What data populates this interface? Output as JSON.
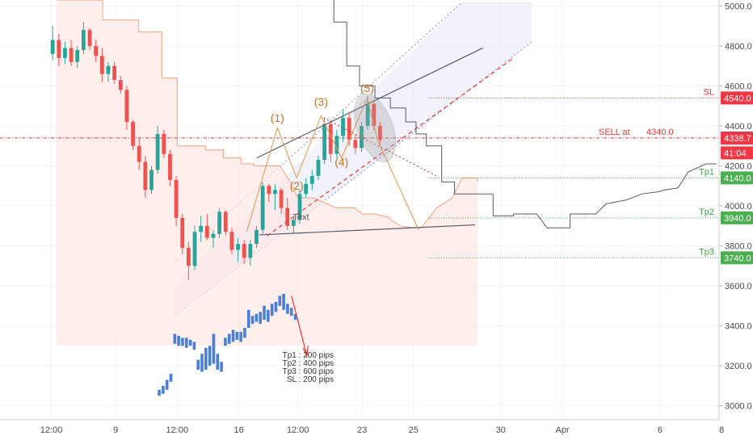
{
  "chart_data": {
    "type": "candlestick",
    "y_axis": {
      "ticks": [
        5000,
        4800,
        4600,
        4400,
        4200,
        4000,
        3800,
        3600,
        3400,
        3200,
        3000
      ],
      "tick_labels": [
        "5000.0",
        "4800.0",
        "4600.0",
        "4400.0",
        "4200.0",
        "4000.0",
        "3800.0",
        "3600.0",
        "3400.0",
        "3200.0",
        "3000.0"
      ],
      "range": [
        2930,
        5030
      ],
      "position": "right"
    },
    "x_axis": {
      "tick_labels": [
        "12:00",
        "9",
        "12:00",
        "16",
        "12:00",
        "23",
        "25",
        "30",
        "Apr",
        "6",
        "8"
      ],
      "range": [
        -1,
        27
      ]
    },
    "price_tags": [
      {
        "value": 4540,
        "label": "4540.0",
        "color": "#f23645"
      },
      {
        "value": 4340,
        "label": "4340.0",
        "color": "#2962ff"
      },
      {
        "value": 4338.7,
        "label": "4338.7",
        "color": "#f23645"
      },
      {
        "value": 4265,
        "label": "41:04",
        "color": "#f23645"
      },
      {
        "value": 4140,
        "label": "4140.0",
        "color": "#4caf50"
      },
      {
        "value": 3940,
        "label": "3940.0",
        "color": "#4caf50"
      },
      {
        "value": 3740,
        "label": "3740.0",
        "color": "#4caf50"
      }
    ],
    "levels": [
      {
        "name": "SL",
        "value": 4540,
        "label": "SL",
        "color": "#e53935"
      },
      {
        "name": "sell",
        "value": 4340,
        "label": "SELL at",
        "price_label": "4340.0",
        "color": "#e53935"
      },
      {
        "name": "tp1",
        "value": 4140,
        "label": "Tp1",
        "color": "#43a047"
      },
      {
        "name": "tp2",
        "value": 3940,
        "label": "Tp2",
        "color": "#43a047"
      },
      {
        "name": "tp3",
        "value": 3740,
        "label": "Tp3",
        "color": "#43a047"
      }
    ],
    "elliott_wave_labels": [
      {
        "label": "(1)",
        "x": 9.8,
        "y": 4420
      },
      {
        "label": "(2)",
        "x": 10.55,
        "y": 4080
      },
      {
        "label": "(3)",
        "x": 11.5,
        "y": 4500
      },
      {
        "label": "(4)",
        "x": 12.3,
        "y": 4200
      },
      {
        "label": "(5)",
        "x": 13.3,
        "y": 4570
      }
    ],
    "note_text": [
      "Tp1 : 200 pips",
      "Tp2 : 400 pips",
      "Tp3 : 600 pips",
      "SL : 200 pips"
    ],
    "text_marker": "Text",
    "candles_ohlc": [
      [
        4760,
        4900,
        4730,
        4830
      ],
      [
        4830,
        4860,
        4700,
        4740
      ],
      [
        4740,
        4820,
        4710,
        4790
      ],
      [
        4790,
        4830,
        4700,
        4720
      ],
      [
        4720,
        4800,
        4690,
        4780
      ],
      [
        4780,
        4920,
        4760,
        4880
      ],
      [
        4880,
        4890,
        4780,
        4800
      ],
      [
        4800,
        4830,
        4720,
        4750
      ],
      [
        4750,
        4790,
        4620,
        4660
      ],
      [
        4660,
        4720,
        4620,
        4700
      ],
      [
        4700,
        4720,
        4610,
        4630
      ],
      [
        4630,
        4650,
        4560,
        4580
      ],
      [
        4580,
        4600,
        4380,
        4420
      ],
      [
        4420,
        4430,
        4280,
        4300
      ],
      [
        4300,
        4340,
        4180,
        4220
      ],
      [
        4220,
        4250,
        4040,
        4080
      ],
      [
        4080,
        4200,
        4060,
        4180
      ],
      [
        4180,
        4400,
        4160,
        4360
      ],
      [
        4360,
        4380,
        4240,
        4260
      ],
      [
        4260,
        4280,
        4100,
        4130
      ],
      [
        4130,
        4150,
        3900,
        3940
      ],
      [
        3940,
        3960,
        3760,
        3790
      ],
      [
        3790,
        3820,
        3630,
        3700
      ],
      [
        3700,
        3900,
        3680,
        3870
      ],
      [
        3870,
        3950,
        3820,
        3900
      ],
      [
        3900,
        3960,
        3830,
        3840
      ],
      [
        3840,
        3880,
        3790,
        3860
      ],
      [
        3860,
        3990,
        3840,
        3970
      ],
      [
        3970,
        3980,
        3850,
        3870
      ],
      [
        3870,
        3890,
        3760,
        3780
      ],
      [
        3780,
        3840,
        3720,
        3810
      ],
      [
        3810,
        3830,
        3710,
        3740
      ],
      [
        3740,
        3830,
        3700,
        3810
      ],
      [
        3810,
        3900,
        3790,
        3880
      ],
      [
        3880,
        4120,
        3860,
        4100
      ],
      [
        4100,
        4110,
        4020,
        4060
      ],
      [
        4060,
        4110,
        3980,
        4080
      ],
      [
        4080,
        4090,
        3960,
        3990
      ],
      [
        3990,
        4040,
        3880,
        3900
      ],
      [
        3900,
        3950,
        3860,
        3930
      ],
      [
        3930,
        4080,
        3910,
        4060
      ],
      [
        4060,
        4140,
        4040,
        4110
      ],
      [
        4110,
        4180,
        4080,
        4150
      ],
      [
        4150,
        4250,
        4130,
        4230
      ],
      [
        4230,
        4440,
        4210,
        4410
      ],
      [
        4410,
        4430,
        4220,
        4260
      ],
      [
        4260,
        4380,
        4240,
        4350
      ],
      [
        4350,
        4480,
        4320,
        4440
      ],
      [
        4440,
        4460,
        4300,
        4330
      ],
      [
        4330,
        4360,
        4260,
        4290
      ],
      [
        4290,
        4420,
        4270,
        4400
      ],
      [
        4400,
        4550,
        4380,
        4510
      ],
      [
        4510,
        4520,
        4380,
        4400
      ],
      [
        4400,
        4420,
        4300,
        4330
      ]
    ],
    "candle_x_range": [
      1.05,
      13.8
    ],
    "blue_column_chart_note": "lower inset (unlabeled) shows a second price pattern in blue blocks",
    "blue_blocks": [
      [
        3050,
        3080
      ],
      [
        3060,
        3100
      ],
      [
        3080,
        3130
      ],
      [
        3120,
        3160
      ],
      [
        3310,
        3360
      ],
      [
        3300,
        3350
      ],
      [
        3300,
        3340
      ],
      [
        3290,
        3340
      ],
      [
        3300,
        3330
      ],
      [
        3280,
        3320
      ],
      [
        3180,
        3230
      ],
      [
        3170,
        3260
      ],
      [
        3180,
        3290
      ],
      [
        3200,
        3300
      ],
      [
        3210,
        3360
      ],
      [
        3180,
        3260
      ],
      [
        3170,
        3220
      ],
      [
        3300,
        3340
      ],
      [
        3310,
        3360
      ],
      [
        3320,
        3380
      ],
      [
        3330,
        3370
      ],
      [
        3320,
        3370
      ],
      [
        3340,
        3390
      ],
      [
        3390,
        3480
      ],
      [
        3410,
        3450
      ],
      [
        3420,
        3460
      ],
      [
        3410,
        3470
      ],
      [
        3430,
        3500
      ],
      [
        3420,
        3480
      ],
      [
        3450,
        3510
      ],
      [
        3470,
        3520
      ],
      [
        3500,
        3550
      ],
      [
        3480,
        3560
      ],
      [
        3460,
        3510
      ],
      [
        3450,
        3490
      ],
      [
        3430,
        3460
      ]
    ],
    "blue_x_range": [
      5.2,
      10.5
    ]
  }
}
